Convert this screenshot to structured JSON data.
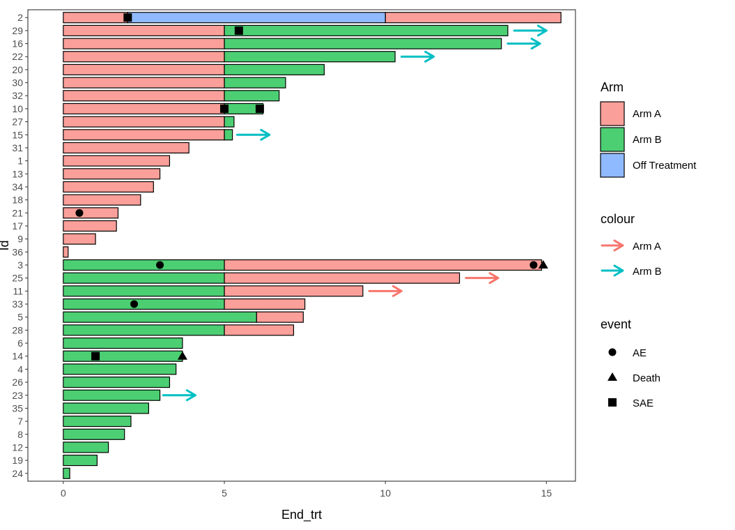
{
  "chart_data": {
    "type": "bar",
    "orientation": "horizontal",
    "xlabel": "End_trt",
    "ylabel": "Id",
    "xlim": [
      -1.1,
      15.9
    ],
    "xticks": [
      0,
      5,
      10,
      15
    ],
    "grid": false,
    "legend_position": "right",
    "colors": {
      "Arm A": "#F8766D",
      "Arm B": "#00BA38",
      "Off Treatment": "#619CFF",
      "Arm B arrow": "#00BFC4"
    },
    "categories": [
      "2",
      "29",
      "16",
      "22",
      "20",
      "30",
      "32",
      "10",
      "27",
      "15",
      "31",
      "1",
      "13",
      "34",
      "18",
      "21",
      "17",
      "9",
      "36",
      "3",
      "25",
      "11",
      "33",
      "5",
      "28",
      "6",
      "14",
      "4",
      "26",
      "23",
      "35",
      "7",
      "8",
      "12",
      "19",
      "24"
    ],
    "subjects": [
      {
        "id": "2",
        "segments": [
          {
            "arm": "Arm A",
            "start": 0,
            "end": 2
          },
          {
            "arm": "Off Treatment",
            "start": 2,
            "end": 10
          },
          {
            "arm": "Arm A",
            "start": 10,
            "end": 15.45
          }
        ]
      },
      {
        "id": "29",
        "segments": [
          {
            "arm": "Arm A",
            "start": 0,
            "end": 5
          },
          {
            "arm": "Arm B",
            "start": 5,
            "end": 13.8
          }
        ]
      },
      {
        "id": "16",
        "segments": [
          {
            "arm": "Arm A",
            "start": 0,
            "end": 5
          },
          {
            "arm": "Arm B",
            "start": 5,
            "end": 13.6
          }
        ]
      },
      {
        "id": "22",
        "segments": [
          {
            "arm": "Arm A",
            "start": 0,
            "end": 5
          },
          {
            "arm": "Arm B",
            "start": 5,
            "end": 10.3
          }
        ]
      },
      {
        "id": "20",
        "segments": [
          {
            "arm": "Arm A",
            "start": 0,
            "end": 5
          },
          {
            "arm": "Arm B",
            "start": 5,
            "end": 8.1
          }
        ]
      },
      {
        "id": "30",
        "segments": [
          {
            "arm": "Arm A",
            "start": 0,
            "end": 5
          },
          {
            "arm": "Arm B",
            "start": 5,
            "end": 6.9
          }
        ]
      },
      {
        "id": "32",
        "segments": [
          {
            "arm": "Arm A",
            "start": 0,
            "end": 5
          },
          {
            "arm": "Arm B",
            "start": 5,
            "end": 6.7
          }
        ]
      },
      {
        "id": "10",
        "segments": [
          {
            "arm": "Arm A",
            "start": 0,
            "end": 5
          },
          {
            "arm": "Arm B",
            "start": 5,
            "end": 6.2
          }
        ]
      },
      {
        "id": "27",
        "segments": [
          {
            "arm": "Arm A",
            "start": 0,
            "end": 5
          },
          {
            "arm": "Arm B",
            "start": 5,
            "end": 5.3
          }
        ]
      },
      {
        "id": "15",
        "segments": [
          {
            "arm": "Arm A",
            "start": 0,
            "end": 5
          },
          {
            "arm": "Arm B",
            "start": 5,
            "end": 5.25
          }
        ]
      },
      {
        "id": "31",
        "segments": [
          {
            "arm": "Arm A",
            "start": 0,
            "end": 3.9
          }
        ]
      },
      {
        "id": "1",
        "segments": [
          {
            "arm": "Arm A",
            "start": 0,
            "end": 3.3
          }
        ]
      },
      {
        "id": "13",
        "segments": [
          {
            "arm": "Arm A",
            "start": 0,
            "end": 3.0
          }
        ]
      },
      {
        "id": "34",
        "segments": [
          {
            "arm": "Arm A",
            "start": 0,
            "end": 2.8
          }
        ]
      },
      {
        "id": "18",
        "segments": [
          {
            "arm": "Arm A",
            "start": 0,
            "end": 2.4
          }
        ]
      },
      {
        "id": "21",
        "segments": [
          {
            "arm": "Arm A",
            "start": 0,
            "end": 1.7
          }
        ]
      },
      {
        "id": "17",
        "segments": [
          {
            "arm": "Arm A",
            "start": 0,
            "end": 1.65
          }
        ]
      },
      {
        "id": "9",
        "segments": [
          {
            "arm": "Arm A",
            "start": 0,
            "end": 1.0
          }
        ]
      },
      {
        "id": "36",
        "segments": [
          {
            "arm": "Arm A",
            "start": 0,
            "end": 0.15
          }
        ]
      },
      {
        "id": "3",
        "segments": [
          {
            "arm": "Arm B",
            "start": 0,
            "end": 5
          },
          {
            "arm": "Arm A",
            "start": 5,
            "end": 14.85
          }
        ]
      },
      {
        "id": "25",
        "segments": [
          {
            "arm": "Arm B",
            "start": 0,
            "end": 5
          },
          {
            "arm": "Arm A",
            "start": 5,
            "end": 12.3
          }
        ]
      },
      {
        "id": "11",
        "segments": [
          {
            "arm": "Arm B",
            "start": 0,
            "end": 5
          },
          {
            "arm": "Arm A",
            "start": 5,
            "end": 9.3
          }
        ]
      },
      {
        "id": "33",
        "segments": [
          {
            "arm": "Arm B",
            "start": 0,
            "end": 5
          },
          {
            "arm": "Arm A",
            "start": 5,
            "end": 7.5
          }
        ]
      },
      {
        "id": "5",
        "segments": [
          {
            "arm": "Arm B",
            "start": 0,
            "end": 6
          },
          {
            "arm": "Arm A",
            "start": 6,
            "end": 7.45
          }
        ]
      },
      {
        "id": "28",
        "segments": [
          {
            "arm": "Arm B",
            "start": 0,
            "end": 5
          },
          {
            "arm": "Arm A",
            "start": 5,
            "end": 7.15
          }
        ]
      },
      {
        "id": "6",
        "segments": [
          {
            "arm": "Arm B",
            "start": 0,
            "end": 3.7
          }
        ]
      },
      {
        "id": "14",
        "segments": [
          {
            "arm": "Arm B",
            "start": 0,
            "end": 3.7
          }
        ]
      },
      {
        "id": "4",
        "segments": [
          {
            "arm": "Arm B",
            "start": 0,
            "end": 3.5
          }
        ]
      },
      {
        "id": "26",
        "segments": [
          {
            "arm": "Arm B",
            "start": 0,
            "end": 3.3
          }
        ]
      },
      {
        "id": "23",
        "segments": [
          {
            "arm": "Arm B",
            "start": 0,
            "end": 3.0
          }
        ]
      },
      {
        "id": "35",
        "segments": [
          {
            "arm": "Arm B",
            "start": 0,
            "end": 2.65
          }
        ]
      },
      {
        "id": "7",
        "segments": [
          {
            "arm": "Arm B",
            "start": 0,
            "end": 2.1
          }
        ]
      },
      {
        "id": "8",
        "segments": [
          {
            "arm": "Arm B",
            "start": 0,
            "end": 1.9
          }
        ]
      },
      {
        "id": "12",
        "segments": [
          {
            "arm": "Arm B",
            "start": 0,
            "end": 1.4
          }
        ]
      },
      {
        "id": "19",
        "segments": [
          {
            "arm": "Arm B",
            "start": 0,
            "end": 1.05
          }
        ]
      },
      {
        "id": "24",
        "segments": [
          {
            "arm": "Arm B",
            "start": 0,
            "end": 0.2
          }
        ]
      }
    ],
    "arrows": [
      {
        "id": "29",
        "start": 14.0,
        "end": 15.0,
        "colour": "Arm B"
      },
      {
        "id": "16",
        "start": 13.8,
        "end": 14.8,
        "colour": "Arm B"
      },
      {
        "id": "22",
        "start": 10.5,
        "end": 11.5,
        "colour": "Arm B"
      },
      {
        "id": "15",
        "start": 5.4,
        "end": 6.4,
        "colour": "Arm B"
      },
      {
        "id": "25",
        "start": 12.5,
        "end": 13.5,
        "colour": "Arm A"
      },
      {
        "id": "11",
        "start": 9.5,
        "end": 10.5,
        "colour": "Arm A"
      },
      {
        "id": "23",
        "start": 3.1,
        "end": 4.1,
        "colour": "Arm B"
      }
    ],
    "events": [
      {
        "id": "2",
        "x": 2.0,
        "event": "SAE"
      },
      {
        "id": "29",
        "x": 5.45,
        "event": "SAE"
      },
      {
        "id": "10",
        "x": 5.0,
        "event": "SAE"
      },
      {
        "id": "10",
        "x": 6.1,
        "event": "SAE"
      },
      {
        "id": "21",
        "x": 0.5,
        "event": "AE"
      },
      {
        "id": "3",
        "x": 3.0,
        "event": "AE"
      },
      {
        "id": "3",
        "x": 14.6,
        "event": "AE"
      },
      {
        "id": "3",
        "x": 14.9,
        "event": "Death"
      },
      {
        "id": "33",
        "x": 2.2,
        "event": "AE"
      },
      {
        "id": "14",
        "x": 1.0,
        "event": "SAE"
      },
      {
        "id": "14",
        "x": 3.7,
        "event": "Death"
      }
    ]
  },
  "legend": {
    "arm": {
      "title": "Arm",
      "items": [
        "Arm A",
        "Arm B",
        "Off Treatment"
      ]
    },
    "colour": {
      "title": "colour",
      "items": [
        "Arm A",
        "Arm B"
      ]
    },
    "event": {
      "title": "event",
      "items": [
        "AE",
        "Death",
        "SAE"
      ]
    }
  }
}
